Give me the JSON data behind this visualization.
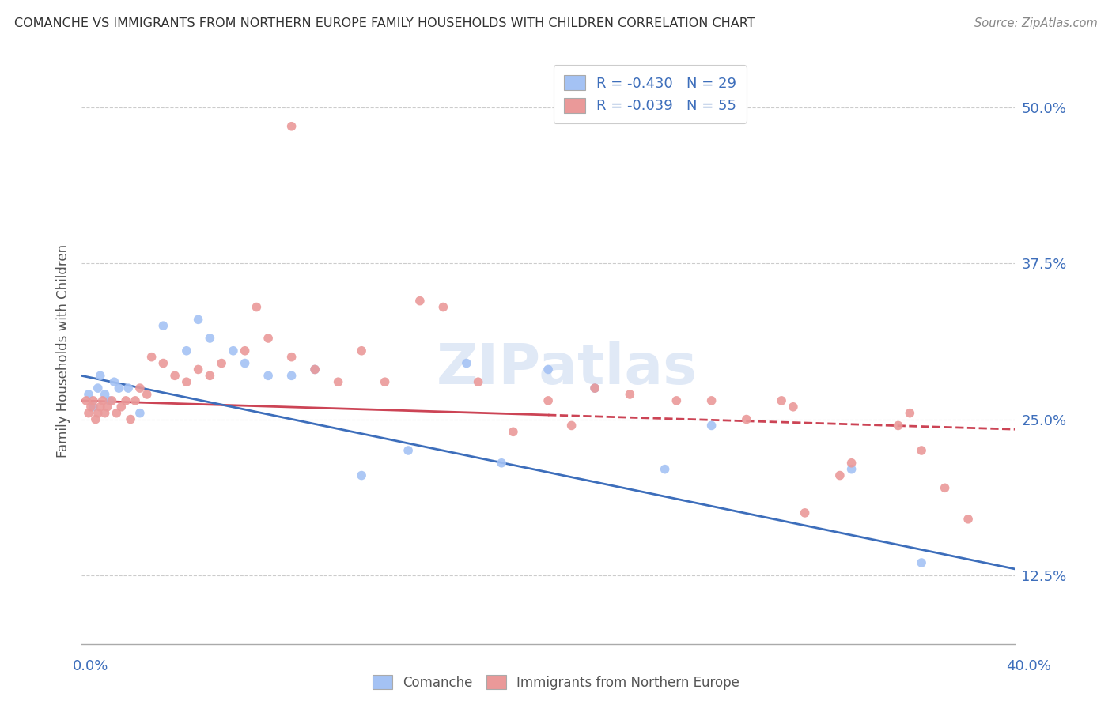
{
  "title": "COMANCHE VS IMMIGRANTS FROM NORTHERN EUROPE FAMILY HOUSEHOLDS WITH CHILDREN CORRELATION CHART",
  "source": "Source: ZipAtlas.com",
  "ylabel_ticks": [
    12.5,
    25.0,
    37.5,
    50.0
  ],
  "xmin": 0.0,
  "xmax": 40.0,
  "ymin": 7.0,
  "ymax": 54.0,
  "blue_color": "#a4c2f4",
  "pink_color": "#ea9999",
  "blue_line_color": "#3d6ebb",
  "pink_line_color": "#cc4455",
  "legend_blue_label": "R = -0.430   N = 29",
  "legend_pink_label": "R = -0.039   N = 55",
  "comanche_label": "Comanche",
  "immigrants_label": "Immigrants from Northern Europe",
  "blue_line_y0": 28.5,
  "blue_line_y1": 13.0,
  "pink_line_y0": 26.5,
  "pink_line_y1": 24.2,
  "blue_scatter_x": [
    0.3,
    0.5,
    0.7,
    0.8,
    1.0,
    1.2,
    1.4,
    1.6,
    2.0,
    2.5,
    3.5,
    4.5,
    5.0,
    5.5,
    6.5,
    7.0,
    8.0,
    9.0,
    10.0,
    12.0,
    14.0,
    16.5,
    18.0,
    20.0,
    22.0,
    25.0,
    27.0,
    33.0,
    36.0
  ],
  "blue_scatter_y": [
    27.0,
    26.0,
    27.5,
    28.5,
    27.0,
    26.5,
    28.0,
    27.5,
    27.5,
    25.5,
    32.5,
    30.5,
    33.0,
    31.5,
    30.5,
    29.5,
    28.5,
    28.5,
    29.0,
    20.5,
    22.5,
    29.5,
    21.5,
    29.0,
    27.5,
    21.0,
    24.5,
    21.0,
    13.5
  ],
  "pink_scatter_x": [
    0.2,
    0.3,
    0.4,
    0.5,
    0.6,
    0.7,
    0.8,
    0.9,
    1.0,
    1.1,
    1.3,
    1.5,
    1.7,
    1.9,
    2.1,
    2.3,
    2.5,
    2.8,
    3.0,
    3.5,
    4.0,
    4.5,
    5.0,
    5.5,
    6.0,
    7.0,
    7.5,
    8.0,
    9.0,
    10.0,
    11.0,
    12.0,
    13.0,
    14.5,
    15.5,
    17.0,
    18.5,
    20.0,
    21.0,
    22.0,
    23.5,
    25.5,
    27.0,
    28.5,
    30.0,
    30.5,
    31.0,
    32.5,
    33.0,
    35.0,
    35.5,
    36.0,
    37.0,
    38.0,
    9.0
  ],
  "pink_scatter_y": [
    26.5,
    25.5,
    26.0,
    26.5,
    25.0,
    25.5,
    26.0,
    26.5,
    25.5,
    26.0,
    26.5,
    25.5,
    26.0,
    26.5,
    25.0,
    26.5,
    27.5,
    27.0,
    30.0,
    29.5,
    28.5,
    28.0,
    29.0,
    28.5,
    29.5,
    30.5,
    34.0,
    31.5,
    30.0,
    29.0,
    28.0,
    30.5,
    28.0,
    34.5,
    34.0,
    28.0,
    24.0,
    26.5,
    24.5,
    27.5,
    27.0,
    26.5,
    26.5,
    25.0,
    26.5,
    26.0,
    17.5,
    20.5,
    21.5,
    24.5,
    25.5,
    22.5,
    19.5,
    17.0,
    48.5
  ]
}
